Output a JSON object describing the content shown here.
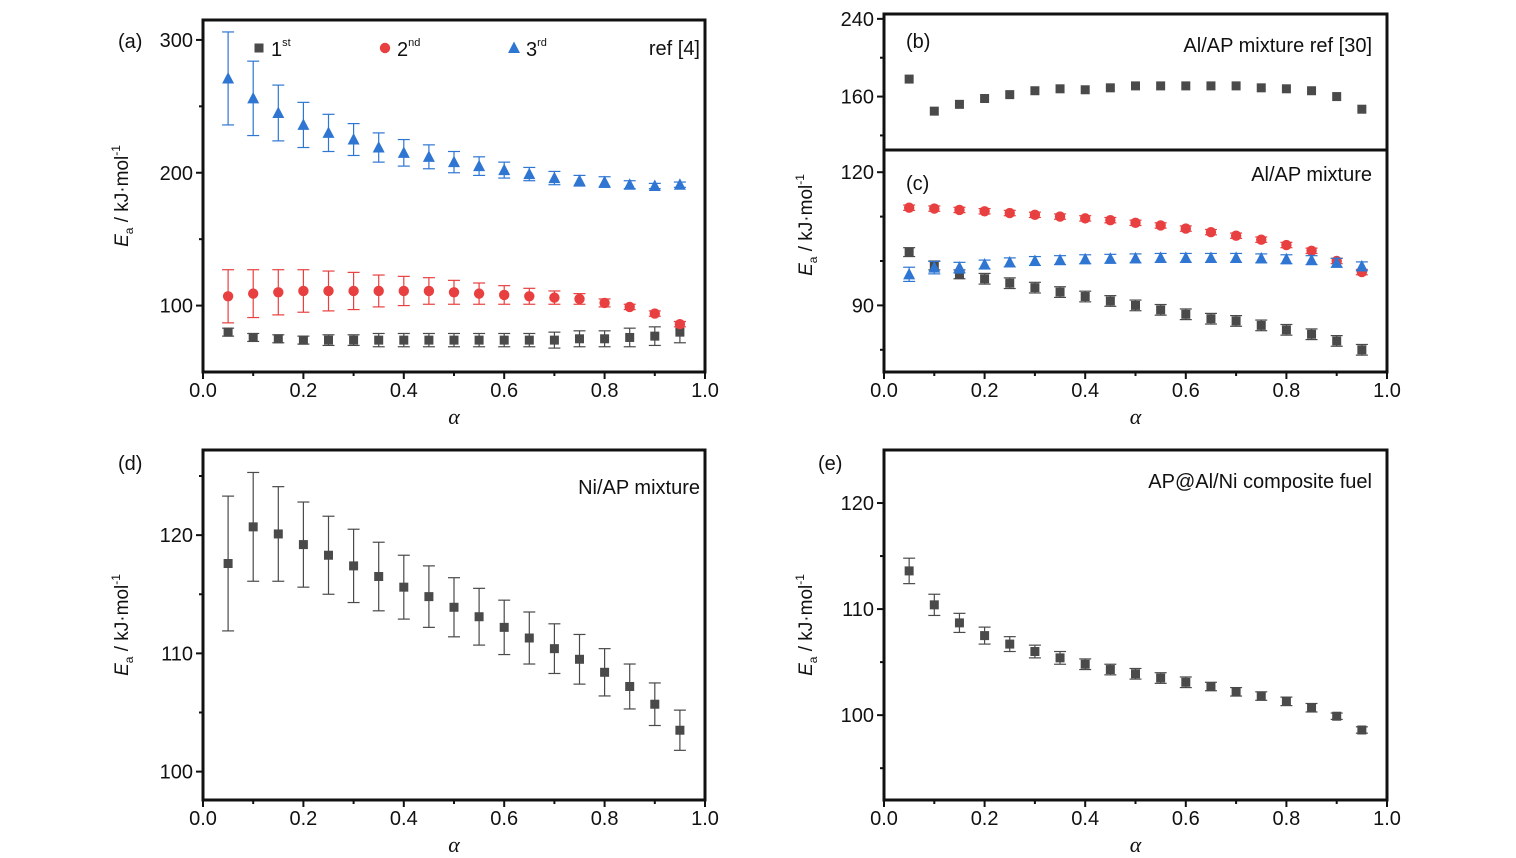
{
  "figure": {
    "colors": {
      "series1": "#4a4a4a",
      "series2": "#e84040",
      "series3": "#2f76d2",
      "axis": "#111111"
    },
    "common": {
      "alpha": [
        0.05,
        0.1,
        0.15,
        0.2,
        0.25,
        0.3,
        0.35,
        0.4,
        0.45,
        0.5,
        0.55,
        0.6,
        0.65,
        0.7,
        0.75,
        0.8,
        0.85,
        0.9,
        0.95
      ],
      "ylabel_main": "E",
      "ylabel_sub": "a",
      "ylabel_units": " / kJ·mol",
      "ylabel_sup": "-1",
      "xlabel": "α",
      "xticks": [
        "0.0",
        "0.2",
        "0.4",
        "0.6",
        "0.8",
        "1.0"
      ]
    }
  },
  "chart_data": [
    {
      "panel": "a",
      "type": "scatter",
      "letter": "(a)",
      "annotation": "ref [4]",
      "xlim": [
        0,
        1
      ],
      "ylim": [
        50,
        315
      ],
      "yticks": [
        100,
        200,
        300
      ],
      "ytick_labels": [
        "100",
        "200",
        "300"
      ],
      "minor_y": [
        150,
        250
      ],
      "legend": [
        {
          "base": "1",
          "sup": "st",
          "marker": "square",
          "color": "#4a4a4a"
        },
        {
          "base": "2",
          "sup": "nd",
          "marker": "circle",
          "color": "#e84040"
        },
        {
          "base": "3",
          "sup": "rd",
          "marker": "triangle",
          "color": "#2f76d2"
        }
      ],
      "series": [
        {
          "marker": "square",
          "color": "#4a4a4a",
          "values": [
            80,
            76,
            75,
            74,
            74,
            74,
            74,
            74,
            74,
            74,
            74,
            74,
            74,
            74,
            75,
            75,
            76,
            77,
            80
          ],
          "errors": [
            3,
            3,
            3,
            3,
            4,
            4,
            5,
            5,
            5,
            5,
            5,
            5,
            5,
            6,
            6,
            6,
            7,
            7,
            8
          ]
        },
        {
          "marker": "circle",
          "color": "#e84040",
          "values": [
            107,
            109,
            110,
            111,
            111,
            111,
            111,
            111,
            111,
            110,
            109,
            108,
            107,
            106,
            105,
            102,
            99,
            94,
            86
          ],
          "errors": [
            20,
            18,
            17,
            16,
            15,
            14,
            12,
            11,
            10,
            9,
            8,
            7,
            6,
            5,
            4,
            3,
            2,
            2,
            2
          ]
        },
        {
          "marker": "triangle",
          "color": "#2f76d2",
          "values": [
            271,
            256,
            245,
            236,
            230,
            225,
            219,
            215,
            212,
            208,
            205,
            202,
            199,
            196,
            194,
            193,
            191,
            190,
            191
          ],
          "errors": [
            35,
            28,
            21,
            17,
            14,
            12,
            11,
            10,
            9,
            8,
            7,
            6,
            5,
            5,
            4,
            4,
            3,
            2,
            2
          ]
        }
      ]
    },
    {
      "panel": "b",
      "type": "scatter",
      "letter": "(b)",
      "annotation": "Al/AP mixture ref [30]",
      "xlim": [
        0,
        1
      ],
      "ylim": [
        105,
        245
      ],
      "yticks": [
        160,
        240
      ],
      "ytick_labels": [
        "160",
        "240"
      ],
      "minor_y": [
        120,
        200
      ],
      "series": [
        {
          "marker": "square",
          "color": "#4a4a4a",
          "values": [
            178,
            145,
            152,
            158,
            162,
            166,
            168,
            167,
            169,
            171,
            171,
            171,
            171,
            171,
            169,
            168,
            166,
            160,
            147
          ],
          "errors": []
        }
      ]
    },
    {
      "panel": "c",
      "type": "scatter",
      "letter": "(c)",
      "annotation": "Al/AP mixture",
      "xlim": [
        0,
        1
      ],
      "ylim": [
        75,
        125
      ],
      "yticks": [
        90,
        120
      ],
      "ytick_labels": [
        "90",
        "120"
      ],
      "minor_y": [
        80,
        100,
        110
      ],
      "series": [
        {
          "marker": "square",
          "color": "#4a4a4a",
          "values": [
            102,
            99,
            97,
            96,
            95,
            94,
            93,
            92,
            91,
            90,
            89,
            88,
            87,
            86.5,
            85.5,
            84.5,
            83.5,
            82,
            80
          ],
          "errors": [
            1,
            1,
            1,
            1.2,
            1.2,
            1.2,
            1.2,
            1.2,
            1.2,
            1.2,
            1.2,
            1.2,
            1.2,
            1.2,
            1.2,
            1.2,
            1.2,
            1.2,
            1.2
          ]
        },
        {
          "marker": "circle",
          "color": "#e84040",
          "values": [
            112,
            111.8,
            111.5,
            111.2,
            110.8,
            110.4,
            110,
            109.6,
            109.2,
            108.6,
            108,
            107.3,
            106.5,
            105.7,
            104.8,
            103.6,
            102.3,
            100,
            97.5
          ],
          "errors": [
            0.6,
            0.6,
            0.6,
            0.6,
            0.6,
            0.6,
            0.6,
            0.6,
            0.6,
            0.6,
            0.6,
            0.6,
            0.6,
            0.6,
            0.6,
            0.6,
            0.6,
            0.6,
            0.6
          ]
        },
        {
          "marker": "triangle",
          "color": "#2f76d2",
          "values": [
            97,
            98.5,
            98.5,
            99.2,
            99.7,
            100,
            100.2,
            100.4,
            100.5,
            100.6,
            100.7,
            100.7,
            100.7,
            100.7,
            100.6,
            100.4,
            100.2,
            99.6,
            98.8
          ],
          "errors": [
            1.6,
            1.4,
            1.2,
            1,
            1,
            1,
            1,
            1,
            1,
            1,
            1,
            1,
            1,
            1,
            1,
            1,
            1,
            1,
            1
          ]
        }
      ]
    },
    {
      "panel": "d",
      "type": "scatter",
      "letter": "(d)",
      "annotation": "Ni/AP mixture",
      "xlim": [
        0,
        1
      ],
      "ylim": [
        97.6,
        127.2
      ],
      "yticks": [
        100,
        110,
        120
      ],
      "ytick_labels": [
        "100",
        "110",
        "120"
      ],
      "minor_y": [
        105,
        115,
        125
      ],
      "series": [
        {
          "marker": "square",
          "color": "#4a4a4a",
          "values": [
            117.6,
            120.7,
            120.1,
            119.2,
            118.3,
            117.4,
            116.5,
            115.6,
            114.8,
            113.9,
            113.1,
            112.2,
            111.3,
            110.4,
            109.5,
            108.4,
            107.2,
            105.7,
            103.5
          ],
          "errors": [
            5.7,
            4.6,
            4,
            3.6,
            3.3,
            3.1,
            2.9,
            2.7,
            2.6,
            2.5,
            2.4,
            2.3,
            2.2,
            2.1,
            2.1,
            2,
            1.9,
            1.8,
            1.7
          ]
        }
      ]
    },
    {
      "panel": "e",
      "type": "scatter",
      "letter": "(e)",
      "annotation": "AP@Al/Ni composite fuel",
      "xlim": [
        0,
        1
      ],
      "ylim": [
        92,
        125
      ],
      "yticks": [
        100,
        110,
        120
      ],
      "ytick_labels": [
        "100",
        "110",
        "120"
      ],
      "minor_y": [
        95,
        105,
        115
      ],
      "series": [
        {
          "marker": "square",
          "color": "#4a4a4a",
          "values": [
            113.6,
            110.4,
            108.7,
            107.5,
            106.7,
            106,
            105.4,
            104.8,
            104.3,
            103.9,
            103.5,
            103.1,
            102.7,
            102.2,
            101.8,
            101.3,
            100.7,
            99.9,
            98.6
          ],
          "errors": [
            1.2,
            1,
            0.9,
            0.8,
            0.7,
            0.6,
            0.6,
            0.5,
            0.5,
            0.5,
            0.5,
            0.5,
            0.4,
            0.4,
            0.4,
            0.4,
            0.4,
            0.3,
            0.3
          ]
        }
      ]
    }
  ]
}
